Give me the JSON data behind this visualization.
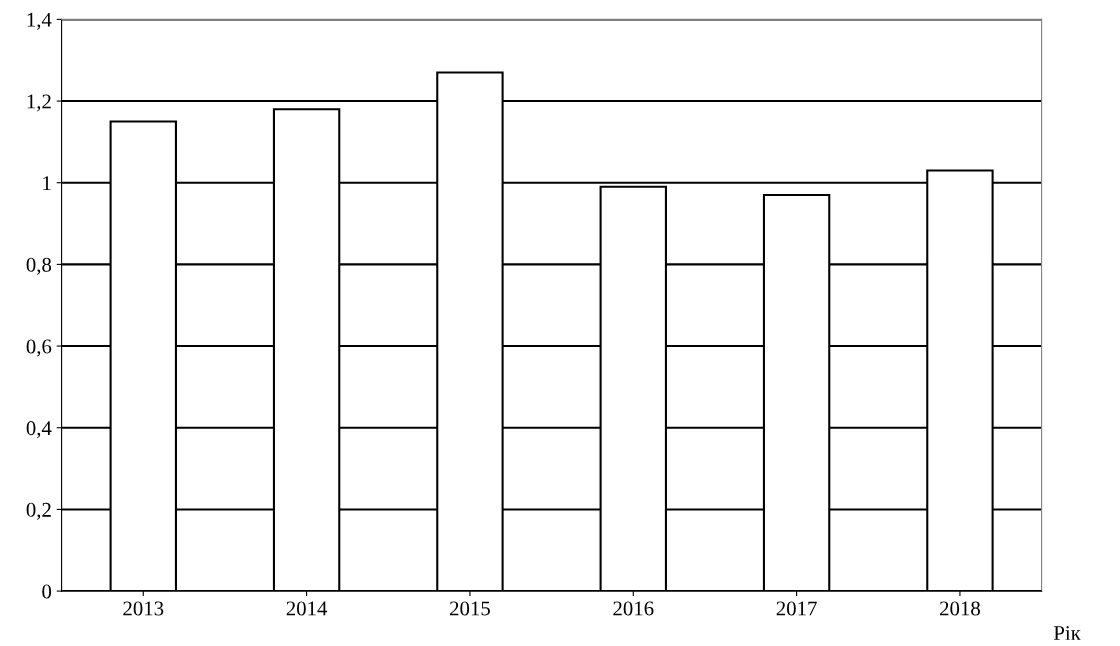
{
  "chart_data": {
    "type": "bar",
    "xlabel": "Рік",
    "categories": [
      "2013",
      "2014",
      "2015",
      "2016",
      "2017",
      "2018"
    ],
    "values": [
      1.15,
      1.18,
      1.27,
      0.99,
      0.97,
      1.03
    ],
    "color": "#ffffff",
    "ylim": [
      0,
      1.4
    ],
    "yticks": [
      0,
      {
        "value": 0.2,
        "label": "0,2"
      },
      {
        "value": 0.4,
        "label": "0,4"
      },
      {
        "value": 0.6,
        "label": "0,6"
      },
      {
        "value": 0.8,
        "label": "0,8"
      },
      1,
      {
        "value": 1.2,
        "label": "1,2"
      },
      {
        "value": 1.4,
        "label": "1,4"
      }
    ],
    "grid": "y"
  }
}
